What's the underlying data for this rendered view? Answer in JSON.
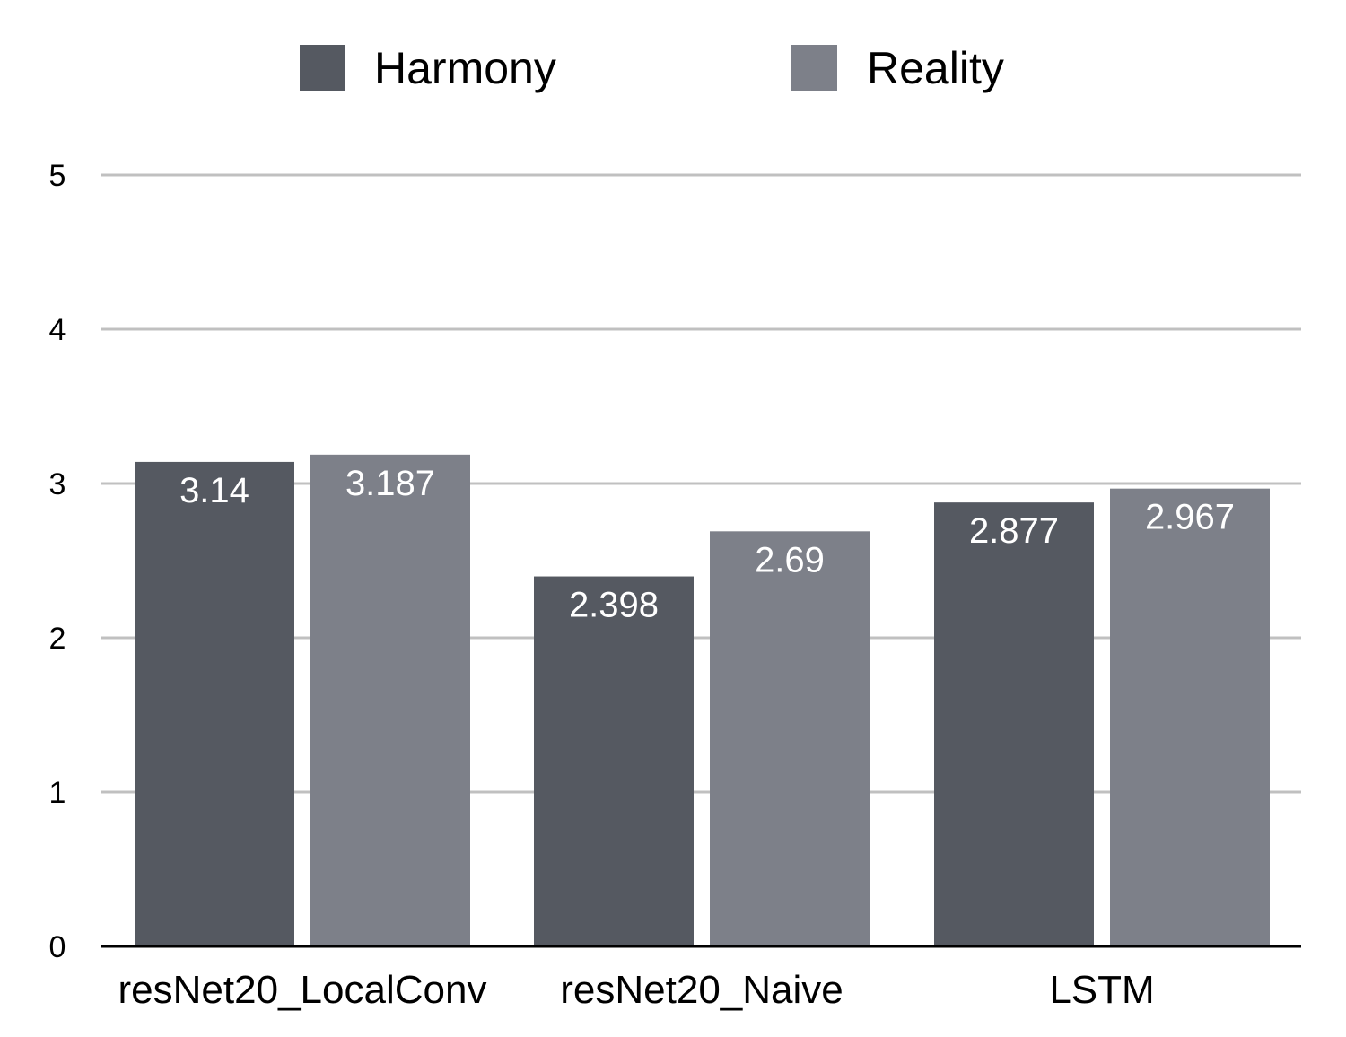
{
  "chart_data": {
    "type": "bar",
    "categories": [
      "resNet20_LocalConv",
      "resNet20_Naive",
      "LSTM"
    ],
    "series": [
      {
        "name": "Harmony",
        "color": "#555961",
        "values": [
          3.14,
          2.398,
          2.877
        ],
        "labels": [
          "3.14",
          "2.398",
          "2.877"
        ]
      },
      {
        "name": "Reality",
        "color": "#7d8089",
        "values": [
          3.187,
          2.69,
          2.967
        ],
        "labels": [
          "3.187",
          "2.69",
          "2.967"
        ]
      }
    ],
    "y_ticks": [
      "0",
      "1",
      "2",
      "3",
      "4",
      "5"
    ],
    "ylim": [
      0,
      5
    ],
    "grid": true,
    "legend_position": "top-center",
    "grid_color": "#c0c0c0",
    "axis_color": "#000000"
  }
}
